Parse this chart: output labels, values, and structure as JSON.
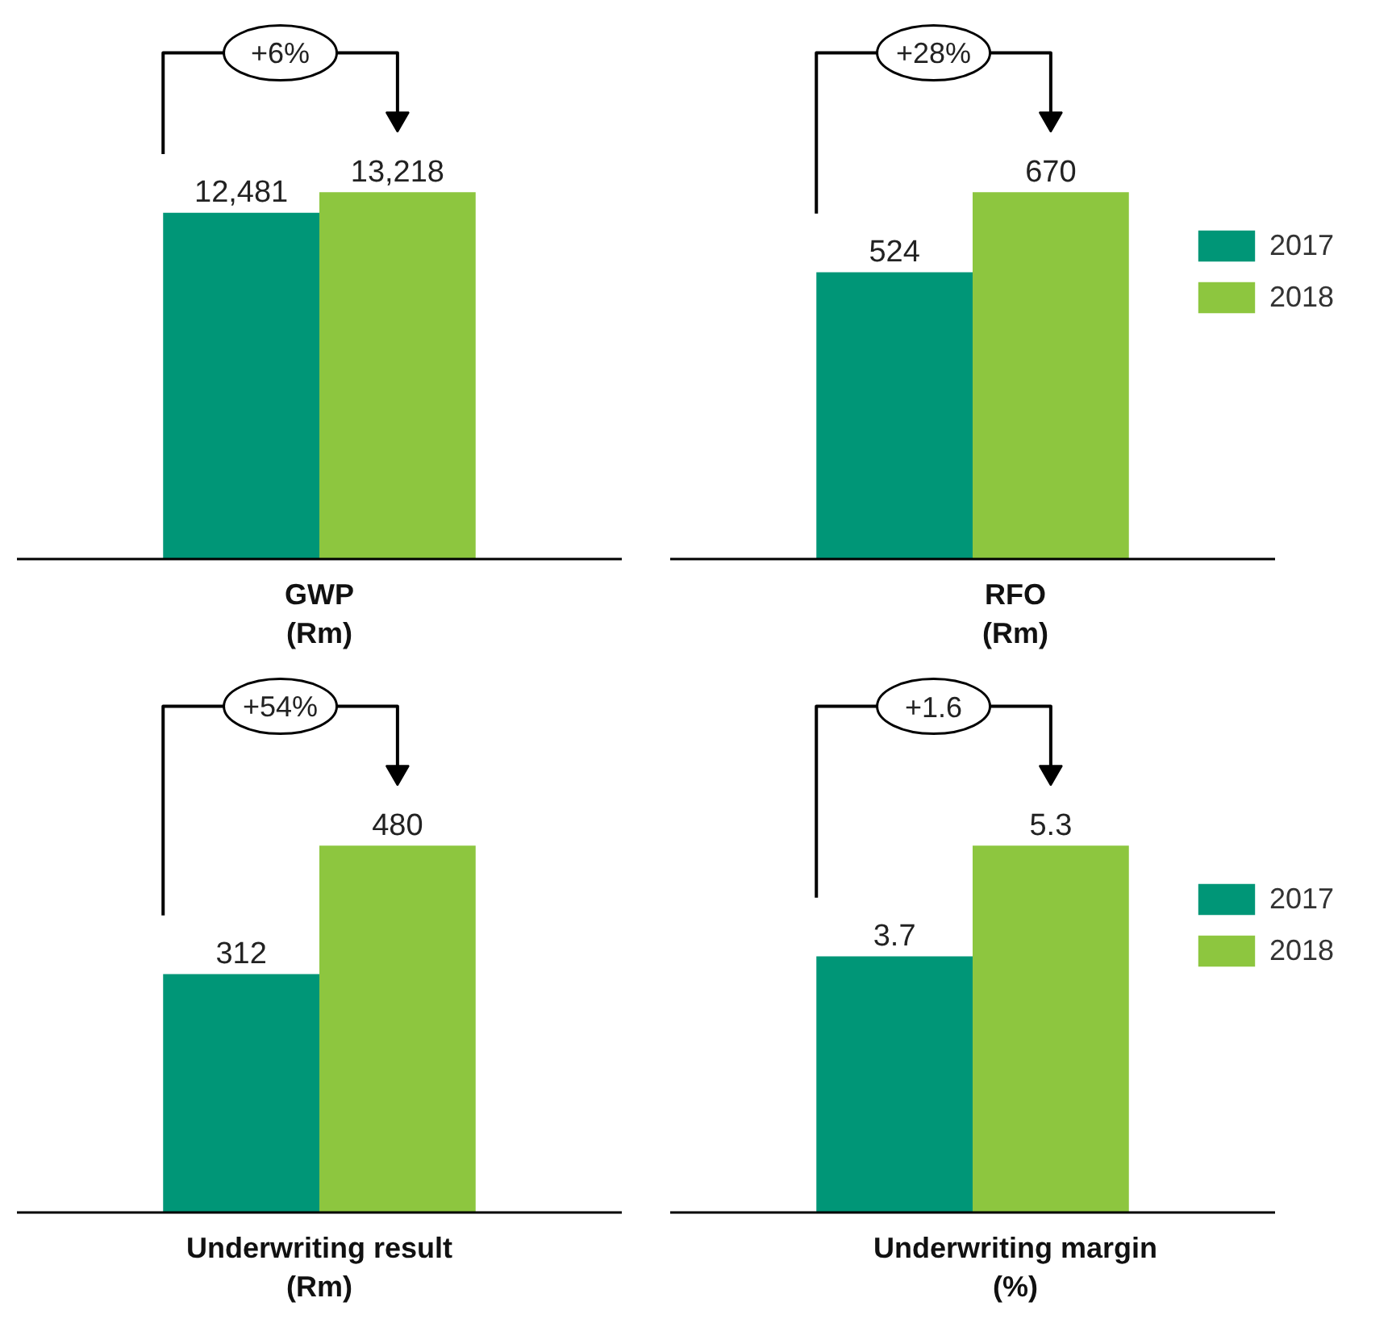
{
  "chart_data": [
    {
      "type": "bar",
      "xlabel": "GWP\n(Rm)",
      "categories": [
        null
      ],
      "series": [
        {
          "color": "#009677",
          "values": [
            12481
          ],
          "value_labels": [
            "12,481"
          ]
        },
        {
          "color": "#8dc63f",
          "values": [
            13218
          ],
          "value_labels": [
            "13,218"
          ]
        }
      ],
      "annotations": [
        "+6%"
      ]
    },
    {
      "type": "bar",
      "xlabel": "RFO\n(Rm)",
      "categories": [
        null
      ],
      "series": [
        {
          "name": "2017",
          "color": "#009677",
          "values": [
            524
          ]
        },
        {
          "name": "2018",
          "color": "#8dc63f",
          "values": [
            670
          ]
        }
      ],
      "data_labels": true,
      "annotations": [
        "+28%"
      ],
      "legend": "right"
    },
    {
      "type": "bar",
      "xlabel": "Underwriting result\n(Rm)",
      "categories": [
        null
      ],
      "series": [
        {
          "color": "#009677",
          "values": [
            312
          ]
        },
        {
          "color": "#8dc63f",
          "values": [
            480
          ]
        }
      ],
      "data_labels": true,
      "annotations": [
        "+54%"
      ]
    },
    {
      "type": "bar",
      "xlabel": "Underwriting margin\n(%)",
      "categories": [
        null
      ],
      "series": [
        {
          "name": "2017",
          "color": "#009677",
          "values": [
            3.7
          ]
        },
        {
          "name": "2018",
          "color": "#8dc63f",
          "values": [
            5.3
          ]
        }
      ],
      "data_labels": true,
      "annotations": [
        "+1.6"
      ],
      "legend": "right"
    }
  ]
}
